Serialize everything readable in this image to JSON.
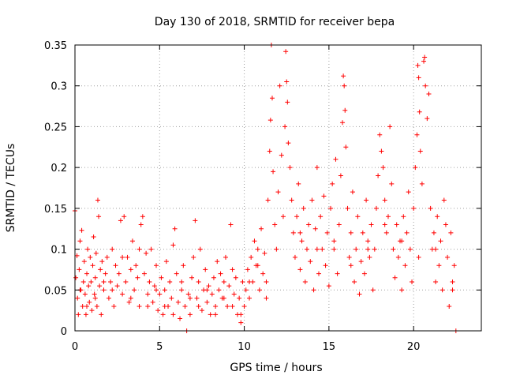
{
  "chart_data": {
    "type": "scatter",
    "title": "Day 130 of 2018, SRMTID for receiver bepa",
    "xlabel": "GPS time / hours",
    "ylabel": "SRMTID / TECUs",
    "xlim": [
      0,
      24
    ],
    "ylim": [
      0,
      0.35
    ],
    "xticks": [
      0,
      5,
      10,
      15,
      20
    ],
    "xtick_labels": [
      "0",
      "5",
      "10",
      "15",
      "20"
    ],
    "yticks": [
      0,
      0.05,
      0.1,
      0.15,
      0.2,
      0.25,
      0.3,
      0.35
    ],
    "ytick_labels": [
      "0",
      "0.05",
      "0.1",
      "0.15",
      "0.2",
      "0.25",
      "0.3",
      "0.35"
    ],
    "grid": true,
    "marker": "+",
    "color": "#ff0000",
    "series": [
      {
        "name": "SRMTID",
        "points": [
          [
            0.0,
            0.147
          ],
          [
            0.05,
            0.065
          ],
          [
            0.12,
            0.092
          ],
          [
            0.15,
            0.04
          ],
          [
            0.2,
            0.02
          ],
          [
            0.25,
            0.075
          ],
          [
            0.3,
            0.11
          ],
          [
            0.35,
            0.05
          ],
          [
            0.4,
            0.123
          ],
          [
            0.45,
            0.03
          ],
          [
            0.5,
            0.06
          ],
          [
            0.55,
            0.085
          ],
          [
            0.6,
            0.045
          ],
          [
            0.65,
            0.02
          ],
          [
            0.7,
            0.07
          ],
          [
            0.75,
            0.1
          ],
          [
            0.8,
            0.055
          ],
          [
            0.85,
            0.035
          ],
          [
            0.9,
            0.09
          ],
          [
            0.95,
            0.06
          ],
          [
            1.0,
            0.025
          ],
          [
            1.05,
            0.08
          ],
          [
            1.1,
            0.115
          ],
          [
            1.15,
            0.045
          ],
          [
            1.2,
            0.065
          ],
          [
            1.25,
            0.095
          ],
          [
            1.3,
            0.03
          ],
          [
            1.35,
            0.16
          ],
          [
            1.4,
            0.14
          ],
          [
            1.45,
            0.055
          ],
          [
            1.5,
            0.075
          ],
          [
            1.55,
            0.02
          ],
          [
            1.6,
            0.085
          ],
          [
            1.7,
            0.05
          ],
          [
            1.8,
            0.07
          ],
          [
            1.9,
            0.09
          ],
          [
            2.0,
            0.04
          ],
          [
            2.1,
            0.06
          ],
          [
            2.2,
            0.1
          ],
          [
            2.3,
            0.03
          ],
          [
            2.4,
            0.08
          ],
          [
            2.5,
            0.055
          ],
          [
            2.6,
            0.07
          ],
          [
            2.7,
            0.135
          ],
          [
            2.8,
            0.045
          ],
          [
            2.9,
            0.14
          ],
          [
            3.0,
            0.06
          ],
          [
            3.1,
            0.09
          ],
          [
            3.2,
            0.035
          ],
          [
            3.3,
            0.075
          ],
          [
            3.4,
            0.11
          ],
          [
            3.5,
            0.05
          ],
          [
            3.6,
            0.08
          ],
          [
            3.7,
            0.065
          ],
          [
            3.8,
            0.03
          ],
          [
            3.9,
            0.13
          ],
          [
            4.0,
            0.14
          ],
          [
            4.1,
            0.07
          ],
          [
            4.2,
            0.095
          ],
          [
            4.3,
            0.045
          ],
          [
            4.4,
            0.06
          ],
          [
            4.5,
            0.1
          ],
          [
            4.6,
            0.035
          ],
          [
            4.7,
            0.055
          ],
          [
            4.8,
            0.08
          ],
          [
            4.9,
            0.025
          ],
          [
            5.0,
            0.045
          ],
          [
            5.1,
            0.065
          ],
          [
            5.2,
            0.02
          ],
          [
            5.3,
            0.05
          ],
          [
            5.4,
            0.085
          ],
          [
            5.5,
            0.03
          ],
          [
            5.6,
            0.06
          ],
          [
            5.7,
            0.04
          ],
          [
            5.8,
            0.105
          ],
          [
            5.9,
            0.125
          ],
          [
            6.0,
            0.07
          ],
          [
            6.1,
            0.035
          ],
          [
            6.2,
            0.015
          ],
          [
            6.3,
            0.05
          ],
          [
            6.4,
            0.08
          ],
          [
            6.5,
            0.03
          ],
          [
            6.6,
            0.0
          ],
          [
            6.7,
            0.045
          ],
          [
            6.8,
            0.02
          ],
          [
            6.9,
            0.065
          ],
          [
            7.0,
            0.09
          ],
          [
            7.1,
            0.135
          ],
          [
            7.2,
            0.04
          ],
          [
            7.3,
            0.06
          ],
          [
            7.4,
            0.1
          ],
          [
            7.5,
            0.025
          ],
          [
            7.6,
            0.05
          ],
          [
            7.7,
            0.075
          ],
          [
            7.8,
            0.035
          ],
          [
            7.9,
            0.055
          ],
          [
            8.0,
            0.02
          ],
          [
            8.1,
            0.045
          ],
          [
            8.2,
            0.065
          ],
          [
            8.3,
            0.03
          ],
          [
            8.4,
            0.085
          ],
          [
            8.5,
            0.05
          ],
          [
            8.6,
            0.07
          ],
          [
            8.7,
            0.04
          ],
          [
            8.8,
            0.06
          ],
          [
            8.9,
            0.09
          ],
          [
            9.0,
            0.03
          ],
          [
            9.1,
            0.055
          ],
          [
            9.2,
            0.13
          ],
          [
            9.3,
            0.075
          ],
          [
            9.4,
            0.045
          ],
          [
            9.5,
            0.065
          ],
          [
            9.6,
            0.02
          ],
          [
            9.7,
            0.04
          ],
          [
            9.8,
            0.01
          ],
          [
            9.9,
            0.06
          ],
          [
            10.0,
            0.03
          ],
          [
            10.1,
            0.05
          ],
          [
            10.2,
            0.075
          ],
          [
            10.3,
            0.04
          ],
          [
            10.4,
            0.09
          ],
          [
            10.5,
            0.06
          ],
          [
            10.6,
            0.11
          ],
          [
            10.7,
            0.08
          ],
          [
            10.8,
            0.1
          ],
          [
            10.9,
            0.05
          ],
          [
            11.0,
            0.125
          ],
          [
            11.1,
            0.07
          ],
          [
            11.2,
            0.095
          ],
          [
            11.3,
            0.06
          ],
          [
            11.4,
            0.16
          ],
          [
            11.5,
            0.22
          ],
          [
            11.55,
            0.258
          ],
          [
            11.6,
            0.35
          ],
          [
            11.65,
            0.285
          ],
          [
            11.7,
            0.195
          ],
          [
            11.8,
            0.13
          ],
          [
            11.9,
            0.1
          ],
          [
            12.0,
            0.17
          ],
          [
            12.1,
            0.3
          ],
          [
            12.2,
            0.215
          ],
          [
            12.3,
            0.14
          ],
          [
            12.4,
            0.25
          ],
          [
            12.45,
            0.342
          ],
          [
            12.5,
            0.305
          ],
          [
            12.55,
            0.28
          ],
          [
            12.6,
            0.23
          ],
          [
            12.7,
            0.2
          ],
          [
            12.8,
            0.16
          ],
          [
            12.9,
            0.12
          ],
          [
            13.0,
            0.09
          ],
          [
            13.1,
            0.14
          ],
          [
            13.2,
            0.18
          ],
          [
            13.3,
            0.075
          ],
          [
            13.4,
            0.11
          ],
          [
            13.5,
            0.15
          ],
          [
            13.6,
            0.06
          ],
          [
            13.7,
            0.1
          ],
          [
            13.8,
            0.13
          ],
          [
            13.9,
            0.085
          ],
          [
            14.0,
            0.16
          ],
          [
            14.1,
            0.05
          ],
          [
            14.2,
            0.125
          ],
          [
            14.3,
            0.2
          ],
          [
            14.4,
            0.07
          ],
          [
            14.5,
            0.14
          ],
          [
            14.6,
            0.1
          ],
          [
            14.7,
            0.165
          ],
          [
            14.8,
            0.08
          ],
          [
            14.9,
            0.12
          ],
          [
            15.0,
            0.055
          ],
          [
            15.1,
            0.15
          ],
          [
            15.2,
            0.18
          ],
          [
            15.3,
            0.1
          ],
          [
            15.4,
            0.21
          ],
          [
            15.5,
            0.07
          ],
          [
            15.6,
            0.13
          ],
          [
            15.7,
            0.19
          ],
          [
            15.8,
            0.255
          ],
          [
            15.85,
            0.312
          ],
          [
            15.9,
            0.3
          ],
          [
            15.95,
            0.27
          ],
          [
            16.0,
            0.225
          ],
          [
            16.1,
            0.15
          ],
          [
            16.2,
            0.09
          ],
          [
            16.3,
            0.12
          ],
          [
            16.4,
            0.17
          ],
          [
            16.5,
            0.06
          ],
          [
            16.6,
            0.1
          ],
          [
            16.7,
            0.14
          ],
          [
            16.8,
            0.045
          ],
          [
            16.9,
            0.085
          ],
          [
            17.0,
            0.12
          ],
          [
            17.1,
            0.07
          ],
          [
            17.2,
            0.16
          ],
          [
            17.3,
            0.11
          ],
          [
            17.4,
            0.09
          ],
          [
            17.5,
            0.13
          ],
          [
            17.6,
            0.05
          ],
          [
            17.7,
            0.1
          ],
          [
            17.8,
            0.15
          ],
          [
            17.9,
            0.19
          ],
          [
            18.0,
            0.24
          ],
          [
            18.1,
            0.22
          ],
          [
            18.2,
            0.2
          ],
          [
            18.3,
            0.16
          ],
          [
            18.4,
            0.12
          ],
          [
            18.5,
            0.14
          ],
          [
            18.6,
            0.25
          ],
          [
            18.7,
            0.18
          ],
          [
            18.8,
            0.1
          ],
          [
            18.9,
            0.065
          ],
          [
            19.0,
            0.13
          ],
          [
            19.1,
            0.09
          ],
          [
            19.2,
            0.11
          ],
          [
            19.3,
            0.05
          ],
          [
            19.4,
            0.14
          ],
          [
            19.5,
            0.08
          ],
          [
            19.6,
            0.12
          ],
          [
            19.7,
            0.17
          ],
          [
            19.8,
            0.1
          ],
          [
            19.9,
            0.06
          ],
          [
            20.0,
            0.15
          ],
          [
            20.1,
            0.2
          ],
          [
            20.2,
            0.24
          ],
          [
            20.25,
            0.325
          ],
          [
            20.3,
            0.31
          ],
          [
            20.35,
            0.268
          ],
          [
            20.4,
            0.22
          ],
          [
            20.5,
            0.18
          ],
          [
            20.6,
            0.33
          ],
          [
            20.65,
            0.335
          ],
          [
            20.7,
            0.3
          ],
          [
            20.8,
            0.26
          ],
          [
            20.9,
            0.29
          ],
          [
            21.0,
            0.15
          ],
          [
            21.1,
            0.1
          ],
          [
            21.2,
            0.12
          ],
          [
            21.3,
            0.06
          ],
          [
            21.4,
            0.14
          ],
          [
            21.5,
            0.08
          ],
          [
            21.6,
            0.11
          ],
          [
            21.7,
            0.05
          ],
          [
            21.8,
            0.16
          ],
          [
            21.9,
            0.13
          ],
          [
            22.0,
            0.09
          ],
          [
            22.1,
            0.03
          ],
          [
            22.2,
            0.12
          ],
          [
            22.3,
            0.06
          ],
          [
            22.4,
            0.08
          ],
          [
            22.5,
            0.0
          ],
          [
            0.3,
            0.05
          ],
          [
            0.7,
            0.03
          ],
          [
            1.2,
            0.04
          ],
          [
            1.7,
            0.06
          ],
          [
            2.2,
            0.05
          ],
          [
            2.8,
            0.09
          ],
          [
            3.3,
            0.04
          ],
          [
            3.8,
            0.1
          ],
          [
            4.3,
            0.03
          ],
          [
            4.8,
            0.05
          ],
          [
            5.3,
            0.03
          ],
          [
            5.8,
            0.02
          ],
          [
            6.3,
            0.06
          ],
          [
            6.8,
            0.04
          ],
          [
            7.3,
            0.03
          ],
          [
            7.8,
            0.05
          ],
          [
            8.3,
            0.02
          ],
          [
            8.8,
            0.04
          ],
          [
            9.3,
            0.03
          ],
          [
            9.8,
            0.02
          ],
          [
            10.3,
            0.06
          ],
          [
            10.8,
            0.08
          ],
          [
            11.3,
            0.04
          ],
          [
            13.3,
            0.12
          ],
          [
            14.3,
            0.1
          ],
          [
            15.3,
            0.11
          ],
          [
            16.3,
            0.08
          ],
          [
            17.3,
            0.1
          ],
          [
            18.3,
            0.13
          ],
          [
            19.3,
            0.11
          ],
          [
            20.3,
            0.09
          ],
          [
            21.3,
            0.1
          ],
          [
            22.3,
            0.05
          ]
        ]
      }
    ]
  }
}
